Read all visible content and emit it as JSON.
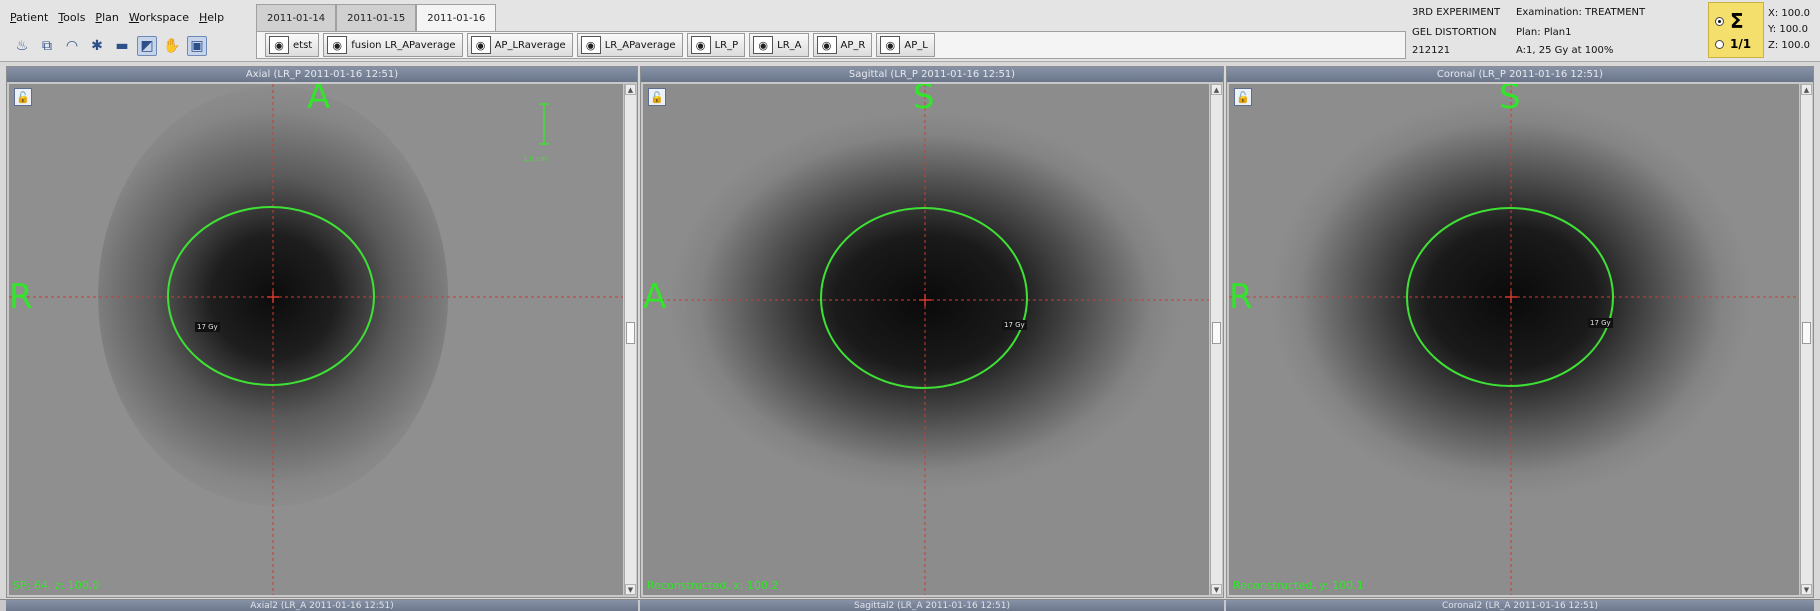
{
  "menu": [
    "Patient",
    "Tools",
    "Plan",
    "Workspace",
    "Help"
  ],
  "toolbar_icons": [
    "beam-icon",
    "copy-windows-icon",
    "wifi-icon",
    "snowflake-icon",
    "window-icon",
    "structure-icon",
    "hand-icon",
    "screen-icon"
  ],
  "date_tabs": {
    "items": [
      "2011-01-14",
      "2011-01-15",
      "2011-01-16"
    ],
    "active": "2011-01-16"
  },
  "dose_sets": [
    "etst",
    "fusion LR_APaverage",
    "AP_LRaverage",
    "LR_APaverage",
    "LR_P",
    "LR_A",
    "AP_R",
    "AP_L"
  ],
  "patient": {
    "name": "3RD EXPERIMENT",
    "subtitle": "GEL DISTORTION",
    "id": "212121",
    "examination": "Examination: TREATMENT",
    "plan": "Plan: Plan1",
    "dose_info": "A:1, 25 Gy at 100%"
  },
  "dose_mode": {
    "sum_label": "Σ",
    "fraction_label": "1/1",
    "selected": "sum"
  },
  "coords": {
    "x": "X: 100.0",
    "y": "Y: 100.0",
    "z": "Z: 100.0"
  },
  "panels": [
    {
      "title": "Axial (LR_P 2011-01-16 12:51)",
      "top": "A",
      "left": "R",
      "status": "SP: 64, z: 100.0",
      "isodose_label": "17 Gy",
      "scale_label": "1.0 cm"
    },
    {
      "title": "Sagittal (LR_P 2011-01-16 12:51)",
      "top": "S",
      "left": "A",
      "status": "Reconstructed, x: 100.2",
      "isodose_label": "17 Gy"
    },
    {
      "title": "Coronal (LR_P 2011-01-16 12:51)",
      "top": "S",
      "left": "R",
      "status": "Reconstructed, y: 100.1",
      "isodose_label": "17 Gy"
    }
  ],
  "lower_titles": [
    "Axial2 (LR_A 2011-01-16 12:51)",
    "Sagittal2 (LR_A 2011-01-16 12:51)",
    "Coronal2 (LR_A 2011-01-16 12:51)"
  ],
  "colors": {
    "isodose": "#3fe035",
    "crosshair": "#d23a2f",
    "orientation": "#33e52a",
    "dose_mode_bg": "#f4df6c"
  }
}
